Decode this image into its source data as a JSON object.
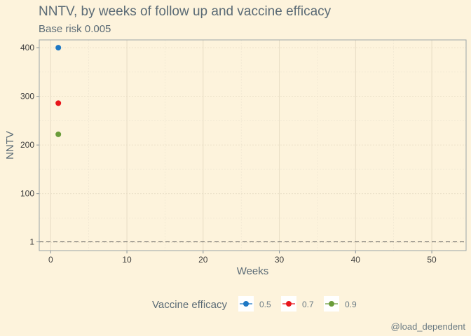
{
  "title": "NNTV, by weeks of follow up and vaccine efficacy",
  "subtitle": "Base risk 0.005",
  "caption": "@load_dependent",
  "chart_data": {
    "type": "scatter",
    "xlabel": "Weeks",
    "ylabel": "NNTV",
    "xlim": [
      -1.5,
      54.5
    ],
    "ylim": [
      -17,
      416
    ],
    "x_ticks": [
      0,
      10,
      20,
      30,
      40,
      50
    ],
    "y_ticks": [
      1,
      100,
      200,
      300,
      400
    ],
    "grid": true,
    "reference_line": {
      "y": 1,
      "style": "dashed"
    },
    "legend": {
      "title": "Vaccine efficacy",
      "position": "bottom"
    },
    "series": [
      {
        "name": "0.5",
        "color": "#1f78c4",
        "points": [
          [
            1,
            400
          ]
        ]
      },
      {
        "name": "0.7",
        "color": "#e8161b",
        "points": [
          [
            1,
            286
          ]
        ]
      },
      {
        "name": "0.9",
        "color": "#6a9c3a",
        "points": [
          [
            1,
            222
          ]
        ]
      }
    ]
  }
}
